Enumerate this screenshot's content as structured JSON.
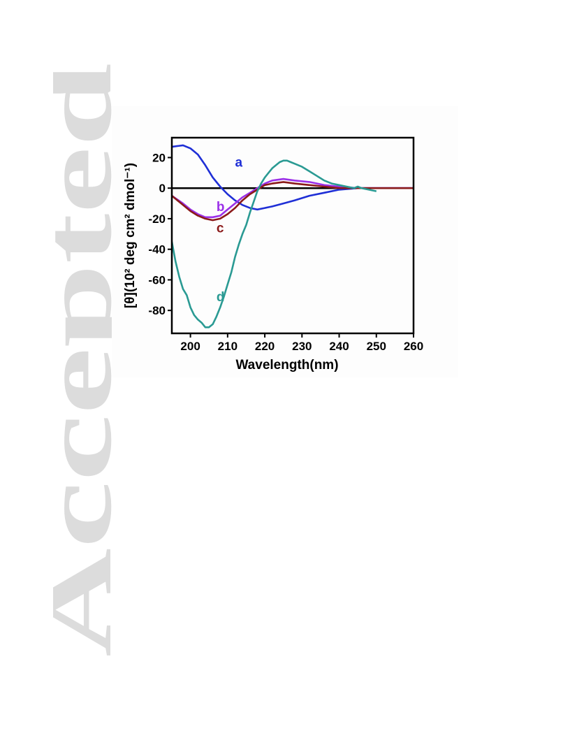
{
  "watermark": {
    "text": "Accepted",
    "color": "#dcdcdc"
  },
  "chart_data": {
    "type": "line",
    "xlabel": "Wavelength(nm)",
    "ylabel": "[θ](10² deg cm² dmol⁻¹)",
    "xlim": [
      195,
      260
    ],
    "ylim": [
      -95,
      33
    ],
    "xticks": [
      200,
      210,
      220,
      230,
      240,
      250,
      260
    ],
    "yticks": [
      20,
      0,
      -20,
      -40,
      -60,
      -80
    ],
    "zero_line": true,
    "grid": false,
    "legend": "none",
    "series": [
      {
        "name": "a",
        "color": "#1f2fd6",
        "points": [
          [
            195,
            27
          ],
          [
            198,
            28
          ],
          [
            200,
            26
          ],
          [
            202,
            22
          ],
          [
            204,
            15
          ],
          [
            206,
            7
          ],
          [
            208,
            1
          ],
          [
            210,
            -4
          ],
          [
            212,
            -8
          ],
          [
            214,
            -11
          ],
          [
            216,
            -13
          ],
          [
            218,
            -14
          ],
          [
            220,
            -13
          ],
          [
            222,
            -12
          ],
          [
            225,
            -10
          ],
          [
            228,
            -8
          ],
          [
            232,
            -5
          ],
          [
            236,
            -3
          ],
          [
            240,
            -1
          ],
          [
            245,
            0
          ],
          [
            250,
            0
          ],
          [
            260,
            0
          ]
        ],
        "label_at": [
          212,
          14
        ]
      },
      {
        "name": "b",
        "color": "#9b30e8",
        "points": [
          [
            195,
            -5
          ],
          [
            198,
            -10
          ],
          [
            200,
            -14
          ],
          [
            202,
            -17
          ],
          [
            204,
            -19
          ],
          [
            206,
            -19
          ],
          [
            208,
            -18
          ],
          [
            210,
            -14
          ],
          [
            212,
            -10
          ],
          [
            214,
            -6
          ],
          [
            216,
            -3
          ],
          [
            218,
            0
          ],
          [
            220,
            3
          ],
          [
            222,
            5
          ],
          [
            225,
            6
          ],
          [
            228,
            5
          ],
          [
            232,
            4
          ],
          [
            236,
            2
          ],
          [
            240,
            1
          ],
          [
            245,
            0
          ],
          [
            250,
            0
          ],
          [
            260,
            0
          ]
        ],
        "label_at": [
          207,
          -15
        ]
      },
      {
        "name": "c",
        "color": "#8b1a1a",
        "points": [
          [
            195,
            -5
          ],
          [
            198,
            -11
          ],
          [
            200,
            -15
          ],
          [
            202,
            -18
          ],
          [
            204,
            -20
          ],
          [
            206,
            -21
          ],
          [
            208,
            -20
          ],
          [
            210,
            -17
          ],
          [
            212,
            -13
          ],
          [
            214,
            -8
          ],
          [
            216,
            -4
          ],
          [
            218,
            -1
          ],
          [
            220,
            2
          ],
          [
            222,
            3
          ],
          [
            225,
            4
          ],
          [
            228,
            3
          ],
          [
            232,
            2
          ],
          [
            236,
            1
          ],
          [
            240,
            0
          ],
          [
            245,
            0
          ],
          [
            250,
            0
          ],
          [
            260,
            0
          ]
        ],
        "label_at": [
          207,
          -29
        ]
      },
      {
        "name": "d",
        "color": "#2a9a93",
        "points": [
          [
            195,
            -35
          ],
          [
            196,
            -48
          ],
          [
            197,
            -58
          ],
          [
            198,
            -66
          ],
          [
            199,
            -70
          ],
          [
            200,
            -78
          ],
          [
            201,
            -83
          ],
          [
            202,
            -86
          ],
          [
            203,
            -88
          ],
          [
            204,
            -91
          ],
          [
            205,
            -91
          ],
          [
            206,
            -89
          ],
          [
            207,
            -84
          ],
          [
            208,
            -78
          ],
          [
            209,
            -71
          ],
          [
            210,
            -63
          ],
          [
            211,
            -55
          ],
          [
            212,
            -45
          ],
          [
            213,
            -37
          ],
          [
            214,
            -30
          ],
          [
            215,
            -24
          ],
          [
            216,
            -16
          ],
          [
            217,
            -9
          ],
          [
            218,
            -2
          ],
          [
            219,
            3
          ],
          [
            220,
            7
          ],
          [
            221,
            10
          ],
          [
            222,
            13
          ],
          [
            223,
            15
          ],
          [
            224,
            17
          ],
          [
            225,
            18
          ],
          [
            226,
            18
          ],
          [
            227,
            17
          ],
          [
            228,
            16
          ],
          [
            230,
            14
          ],
          [
            232,
            11
          ],
          [
            234,
            8
          ],
          [
            236,
            5
          ],
          [
            238,
            3
          ],
          [
            240,
            2
          ],
          [
            242,
            1
          ],
          [
            244,
            0
          ],
          [
            245,
            1
          ],
          [
            246,
            0
          ],
          [
            248,
            -1
          ],
          [
            250,
            -2
          ]
        ],
        "label_at": [
          207,
          -74
        ]
      }
    ]
  }
}
